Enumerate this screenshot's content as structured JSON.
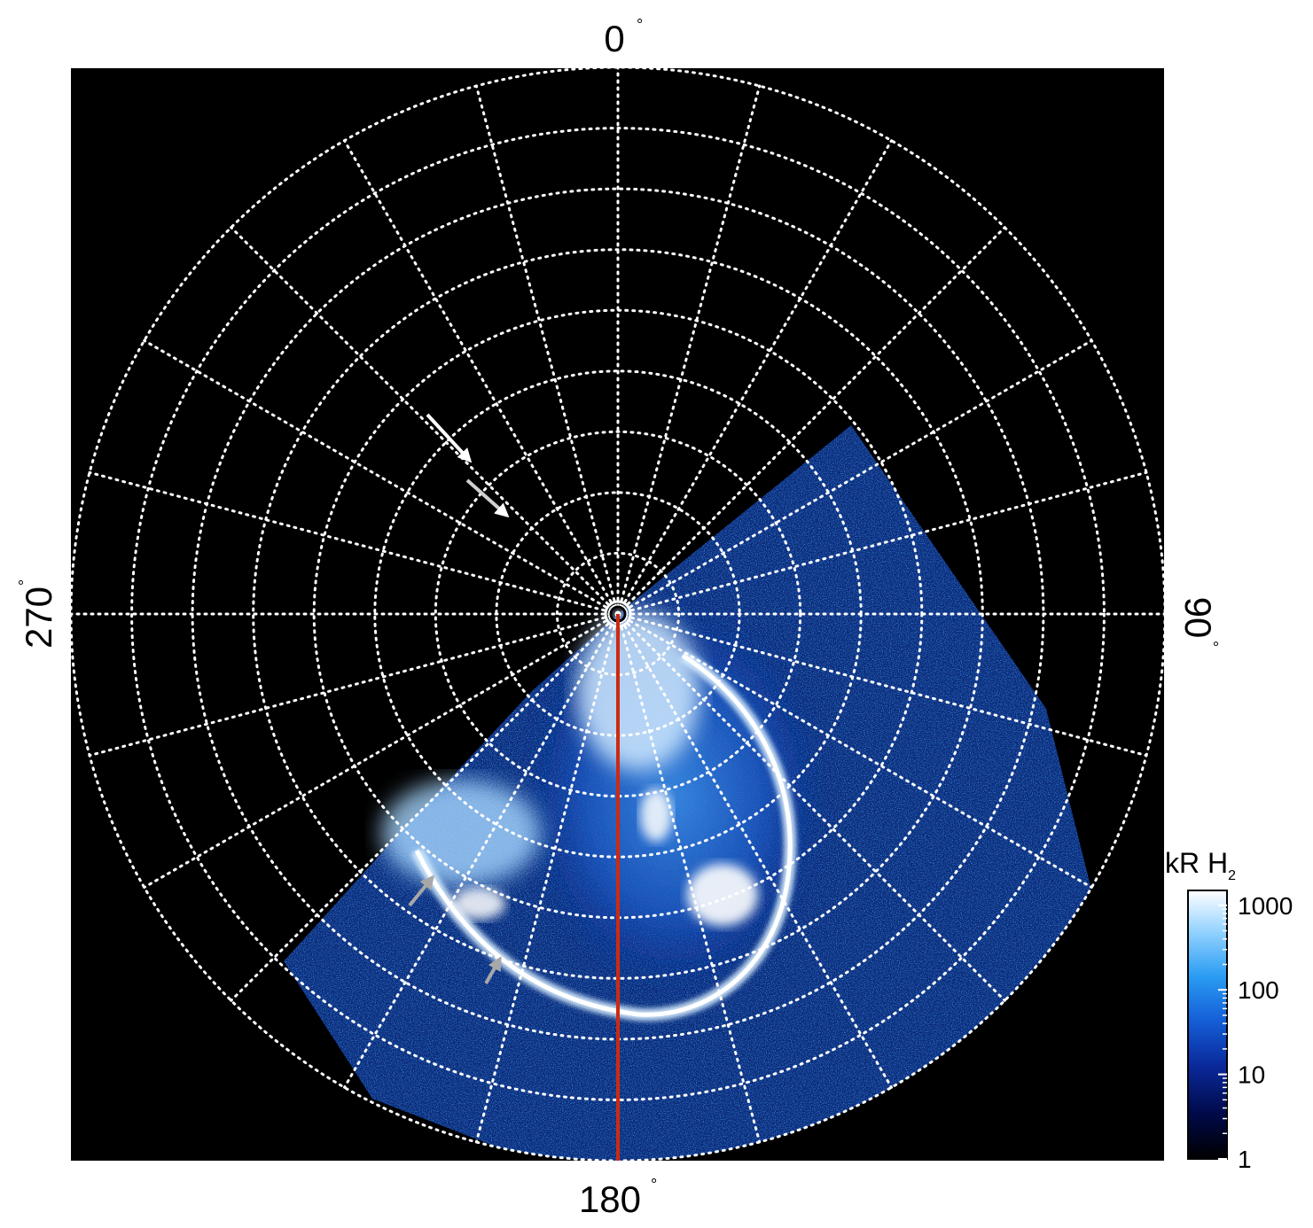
{
  "figure": {
    "longitude_labels": {
      "top": {
        "value": "0",
        "unit": "°"
      },
      "bottom": {
        "value": "180",
        "unit": "°"
      },
      "left": {
        "value": "270",
        "unit": "°"
      },
      "right": {
        "value": "90",
        "unit": "°"
      }
    },
    "colorbar": {
      "title_main": "kR H",
      "title_sub": "2",
      "scale": "log",
      "ticks": [
        "1",
        "10",
        "100",
        "1000"
      ],
      "tick_values": [
        1,
        10,
        100,
        1000
      ],
      "colors": [
        "#000000",
        "#000a4a",
        "#0a2a9c",
        "#1560d8",
        "#2a9cf2",
        "#8fd0ff",
        "#ffffff"
      ]
    },
    "grid": {
      "style": "dotted",
      "color": "#ffffff",
      "rings": 9,
      "meridian_step_deg": 15
    },
    "colors": {
      "background": "#000000",
      "meridian_line": "#cc2a12",
      "arrow_white": "#ffffff",
      "arrow_gray": "#a8a8a8"
    },
    "annotations": [
      {
        "type": "arrow",
        "color": "white",
        "count": 2,
        "points_to": "upper-left quadrant, toward the pole"
      },
      {
        "type": "arrow",
        "color": "gray",
        "count": 2,
        "points_to": "main auroral oval, lower left"
      }
    ]
  }
}
